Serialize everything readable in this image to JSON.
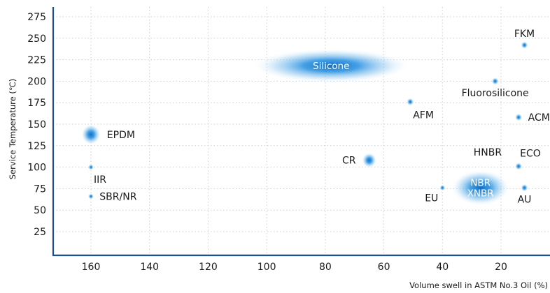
{
  "chart_data": {
    "type": "scatter",
    "title": "",
    "xlabel": "Volume swell in ASTM No.3 Oil (%)",
    "ylabel": "Service Temperature (℃)",
    "x_reversed": true,
    "xlim": [
      173,
      7
    ],
    "ylim": [
      5,
      280
    ],
    "x_ticks": [
      160,
      140,
      120,
      100,
      80,
      60,
      40,
      20
    ],
    "y_ticks": [
      25,
      50,
      75,
      100,
      125,
      150,
      175,
      200,
      225,
      250,
      275
    ],
    "grid": true,
    "accent_color": "#1a86d9",
    "axis_color": "#1d4f8f",
    "points": [
      {
        "label": "FKM",
        "x": 12,
        "y": 242,
        "rx": 0.8,
        "ry": 4.5,
        "label_pos": "above",
        "label_color": "dark"
      },
      {
        "label": "Silicone",
        "x": 78,
        "y": 218,
        "rx": 27,
        "ry": 20,
        "label_pos": "center",
        "label_color": "light"
      },
      {
        "label": "Fluorosilicone",
        "x": 22,
        "y": 200,
        "rx": 0.8,
        "ry": 4.5,
        "label_pos": "below",
        "label_color": "dark"
      },
      {
        "label": "AFM",
        "x": 51,
        "y": 176,
        "rx": 0.8,
        "ry": 4.5,
        "label_pos": "below-right",
        "label_color": "dark"
      },
      {
        "label": "ACM",
        "x": 14,
        "y": 158,
        "rx": 0.8,
        "ry": 4.5,
        "label_pos": "right",
        "label_color": "dark"
      },
      {
        "label": "EPDM",
        "x": 160,
        "y": 138,
        "rx": 1.5,
        "ry": 12,
        "label_pos": "right",
        "label_color": "dark"
      },
      {
        "label": "CR",
        "x": 65,
        "y": 108,
        "rx": 0.9,
        "ry": 9,
        "label_pos": "left",
        "label_color": "dark"
      },
      {
        "label": "HNBR",
        "x": 14,
        "y": 101,
        "rx": 0.8,
        "ry": 4.5,
        "label_pos": "left-above",
        "label_color": "dark"
      },
      {
        "label": "ECO",
        "x": 14,
        "y": 101,
        "rx": 0,
        "ry": 0,
        "label_pos": "above-right",
        "label_color": "dark"
      },
      {
        "label": "IIR",
        "x": 160,
        "y": 100,
        "rx": 0.6,
        "ry": 3.5,
        "label_pos": "below-right",
        "label_color": "dark"
      },
      {
        "label": "NBR\nXNBR",
        "x": 27,
        "y": 76,
        "rx": 10,
        "ry": 21,
        "label_pos": "center",
        "label_color": "light"
      },
      {
        "label": "AU",
        "x": 12,
        "y": 76,
        "rx": 0.8,
        "ry": 4.5,
        "label_pos": "below",
        "label_color": "dark"
      },
      {
        "label": "EU",
        "x": 40,
        "y": 76,
        "rx": 0.6,
        "ry": 3.5,
        "label_pos": "below-left",
        "label_color": "dark"
      },
      {
        "label": "SBR/NR",
        "x": 160,
        "y": 66,
        "rx": 0.6,
        "ry": 3.5,
        "label_pos": "right",
        "label_color": "dark"
      }
    ]
  }
}
